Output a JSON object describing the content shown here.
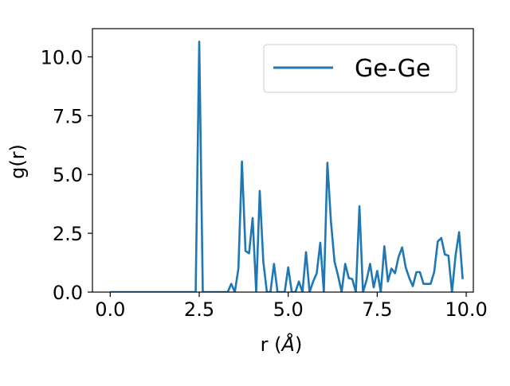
{
  "chart_data": {
    "type": "line",
    "xlabel": "r (",
    "xlabel_unit": "Å",
    "xlabel_close": ")",
    "ylabel": "g(r)",
    "xlim": [
      -0.5,
      10.2
    ],
    "ylim": [
      0,
      11.2
    ],
    "xticks": [
      0.0,
      2.5,
      5.0,
      7.5,
      10.0
    ],
    "xtick_labels": [
      "0.0",
      "2.5",
      "5.0",
      "7.5",
      "10.0"
    ],
    "yticks": [
      0.0,
      2.5,
      5.0,
      7.5,
      10.0
    ],
    "ytick_labels": [
      "0.0",
      "2.5",
      "5.0",
      "7.5",
      "10.0"
    ],
    "grid": false,
    "legend_position": "top-right",
    "line_color": "#1f77b4",
    "series": [
      {
        "name": "Ge-Ge",
        "x": [
          0.0,
          0.1,
          0.2,
          0.3,
          0.4,
          0.5,
          0.6,
          0.7,
          0.8,
          0.9,
          1.0,
          1.1,
          1.2,
          1.3,
          1.4,
          1.5,
          1.6,
          1.7,
          1.8,
          1.9,
          2.0,
          2.1,
          2.2,
          2.3,
          2.4,
          2.5,
          2.6,
          2.7,
          2.8,
          2.9,
          3.0,
          3.1,
          3.2,
          3.3,
          3.4,
          3.5,
          3.6,
          3.7,
          3.8,
          3.9,
          4.0,
          4.1,
          4.2,
          4.3,
          4.4,
          4.5,
          4.6,
          4.7,
          4.8,
          4.9,
          5.0,
          5.1,
          5.2,
          5.3,
          5.4,
          5.5,
          5.6,
          5.7,
          5.8,
          5.9,
          6.0,
          6.1,
          6.2,
          6.3,
          6.4,
          6.5,
          6.6,
          6.7,
          6.8,
          6.9,
          7.0,
          7.1,
          7.2,
          7.3,
          7.4,
          7.5,
          7.6,
          7.7,
          7.8,
          7.9,
          8.0,
          8.1,
          8.2,
          8.3,
          8.4,
          8.5,
          8.6,
          8.7,
          8.8,
          8.9,
          9.0,
          9.1,
          9.2,
          9.3,
          9.4,
          9.5,
          9.6,
          9.7,
          9.8,
          9.9
        ],
        "values": [
          0,
          0,
          0,
          0,
          0,
          0,
          0,
          0,
          0,
          0,
          0,
          0,
          0,
          0,
          0,
          0,
          0,
          0,
          0,
          0,
          0,
          0,
          0,
          0,
          0,
          10.65,
          0,
          0,
          0,
          0,
          0,
          0,
          0,
          0,
          0.35,
          0,
          1.0,
          5.55,
          1.75,
          1.65,
          3.15,
          0,
          4.3,
          1.3,
          0,
          0,
          1.2,
          0,
          0,
          0,
          1.05,
          0,
          0,
          0.45,
          0,
          1.7,
          0,
          0.45,
          0.8,
          2.1,
          0,
          5.5,
          3.0,
          1.3,
          0.7,
          0,
          1.2,
          0.6,
          0.55,
          0,
          3.65,
          0,
          0.5,
          1.2,
          0.2,
          0.9,
          0,
          1.95,
          0.45,
          1.0,
          0.8,
          1.5,
          1.9,
          1.05,
          0.6,
          0.25,
          0.85,
          0.85,
          0.35,
          0.35,
          0.35,
          0.85,
          2.15,
          2.3,
          1.6,
          1.55,
          0,
          1.55,
          2.55,
          0.55
        ]
      }
    ]
  }
}
